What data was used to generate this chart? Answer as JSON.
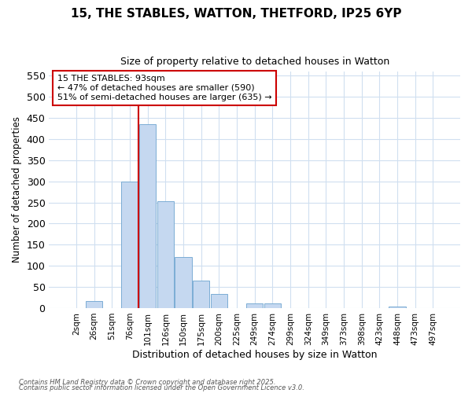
{
  "title1": "15, THE STABLES, WATTON, THETFORD, IP25 6YP",
  "title2": "Size of property relative to detached houses in Watton",
  "xlabel": "Distribution of detached houses by size in Watton",
  "ylabel": "Number of detached properties",
  "categories": [
    "2sqm",
    "26sqm",
    "51sqm",
    "76sqm",
    "101sqm",
    "126sqm",
    "150sqm",
    "175sqm",
    "200sqm",
    "225sqm",
    "249sqm",
    "274sqm",
    "299sqm",
    "324sqm",
    "349sqm",
    "373sqm",
    "398sqm",
    "423sqm",
    "448sqm",
    "473sqm",
    "497sqm"
  ],
  "values": [
    0,
    17,
    0,
    300,
    435,
    253,
    120,
    65,
    34,
    0,
    11,
    12,
    0,
    0,
    0,
    0,
    0,
    0,
    4,
    0,
    0
  ],
  "bar_color": "#c5d8f0",
  "bar_edgecolor": "#7badd4",
  "vline_color": "#cc0000",
  "annotation_text": "15 THE STABLES: 93sqm\n← 47% of detached houses are smaller (590)\n51% of semi-detached houses are larger (635) →",
  "annotation_box_facecolor": "white",
  "annotation_box_edgecolor": "#cc0000",
  "ylim": [
    0,
    560
  ],
  "yticks": [
    0,
    50,
    100,
    150,
    200,
    250,
    300,
    350,
    400,
    450,
    500,
    550
  ],
  "footer1": "Contains HM Land Registry data © Crown copyright and database right 2025.",
  "footer2": "Contains public sector information licensed under the Open Government Licence v3.0.",
  "bg_color": "#ffffff",
  "plot_bg_color": "#ffffff",
  "grid_color": "#d0dff0"
}
